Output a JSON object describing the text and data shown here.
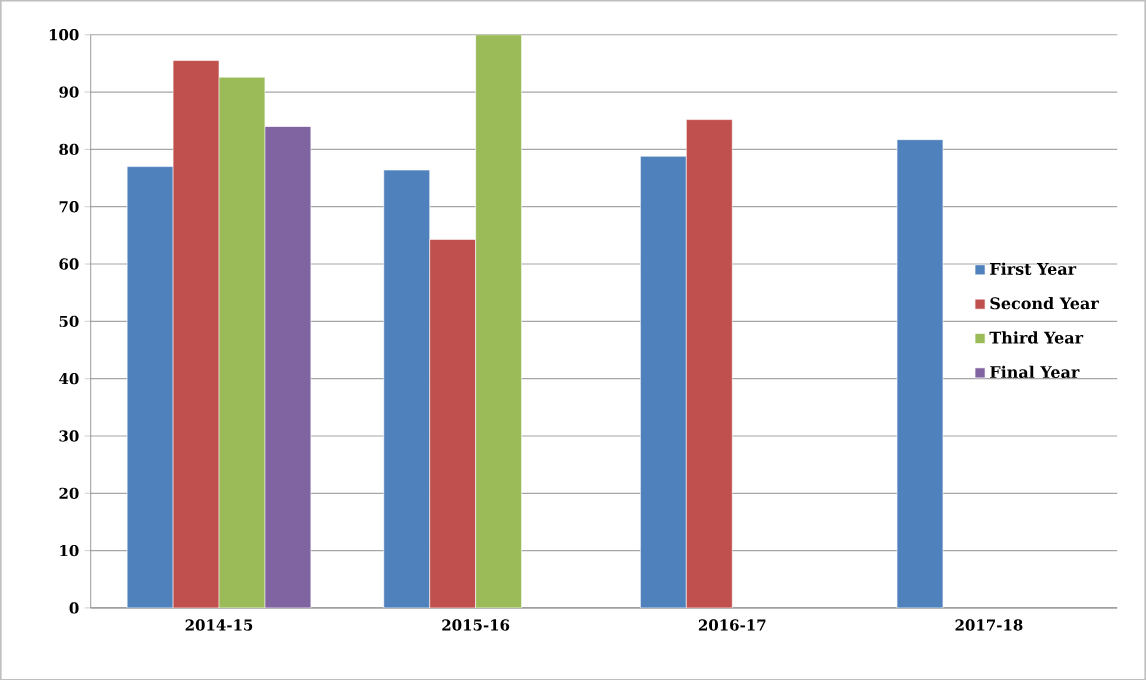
{
  "chart_data": {
    "type": "bar",
    "categories": [
      "2014-15",
      "2015-16",
      "2016-17",
      "2017-18"
    ],
    "series": [
      {
        "name": "First Year",
        "color": "#4f81bd",
        "values": [
          77,
          76.4,
          78.8,
          81.7
        ]
      },
      {
        "name": "Second Year",
        "color": "#c0504d",
        "values": [
          95.5,
          64.3,
          85.2,
          null
        ]
      },
      {
        "name": "Third Year",
        "color": "#9bbb59",
        "values": [
          92.6,
          100,
          null,
          null
        ]
      },
      {
        "name": "Final Year",
        "color": "#8064a2",
        "values": [
          84,
          null,
          null,
          null
        ]
      }
    ],
    "ylim": [
      0,
      100
    ],
    "yticks": [
      0,
      10,
      20,
      30,
      40,
      50,
      60,
      70,
      80,
      90,
      100
    ],
    "grid": "y",
    "legend": "right"
  }
}
